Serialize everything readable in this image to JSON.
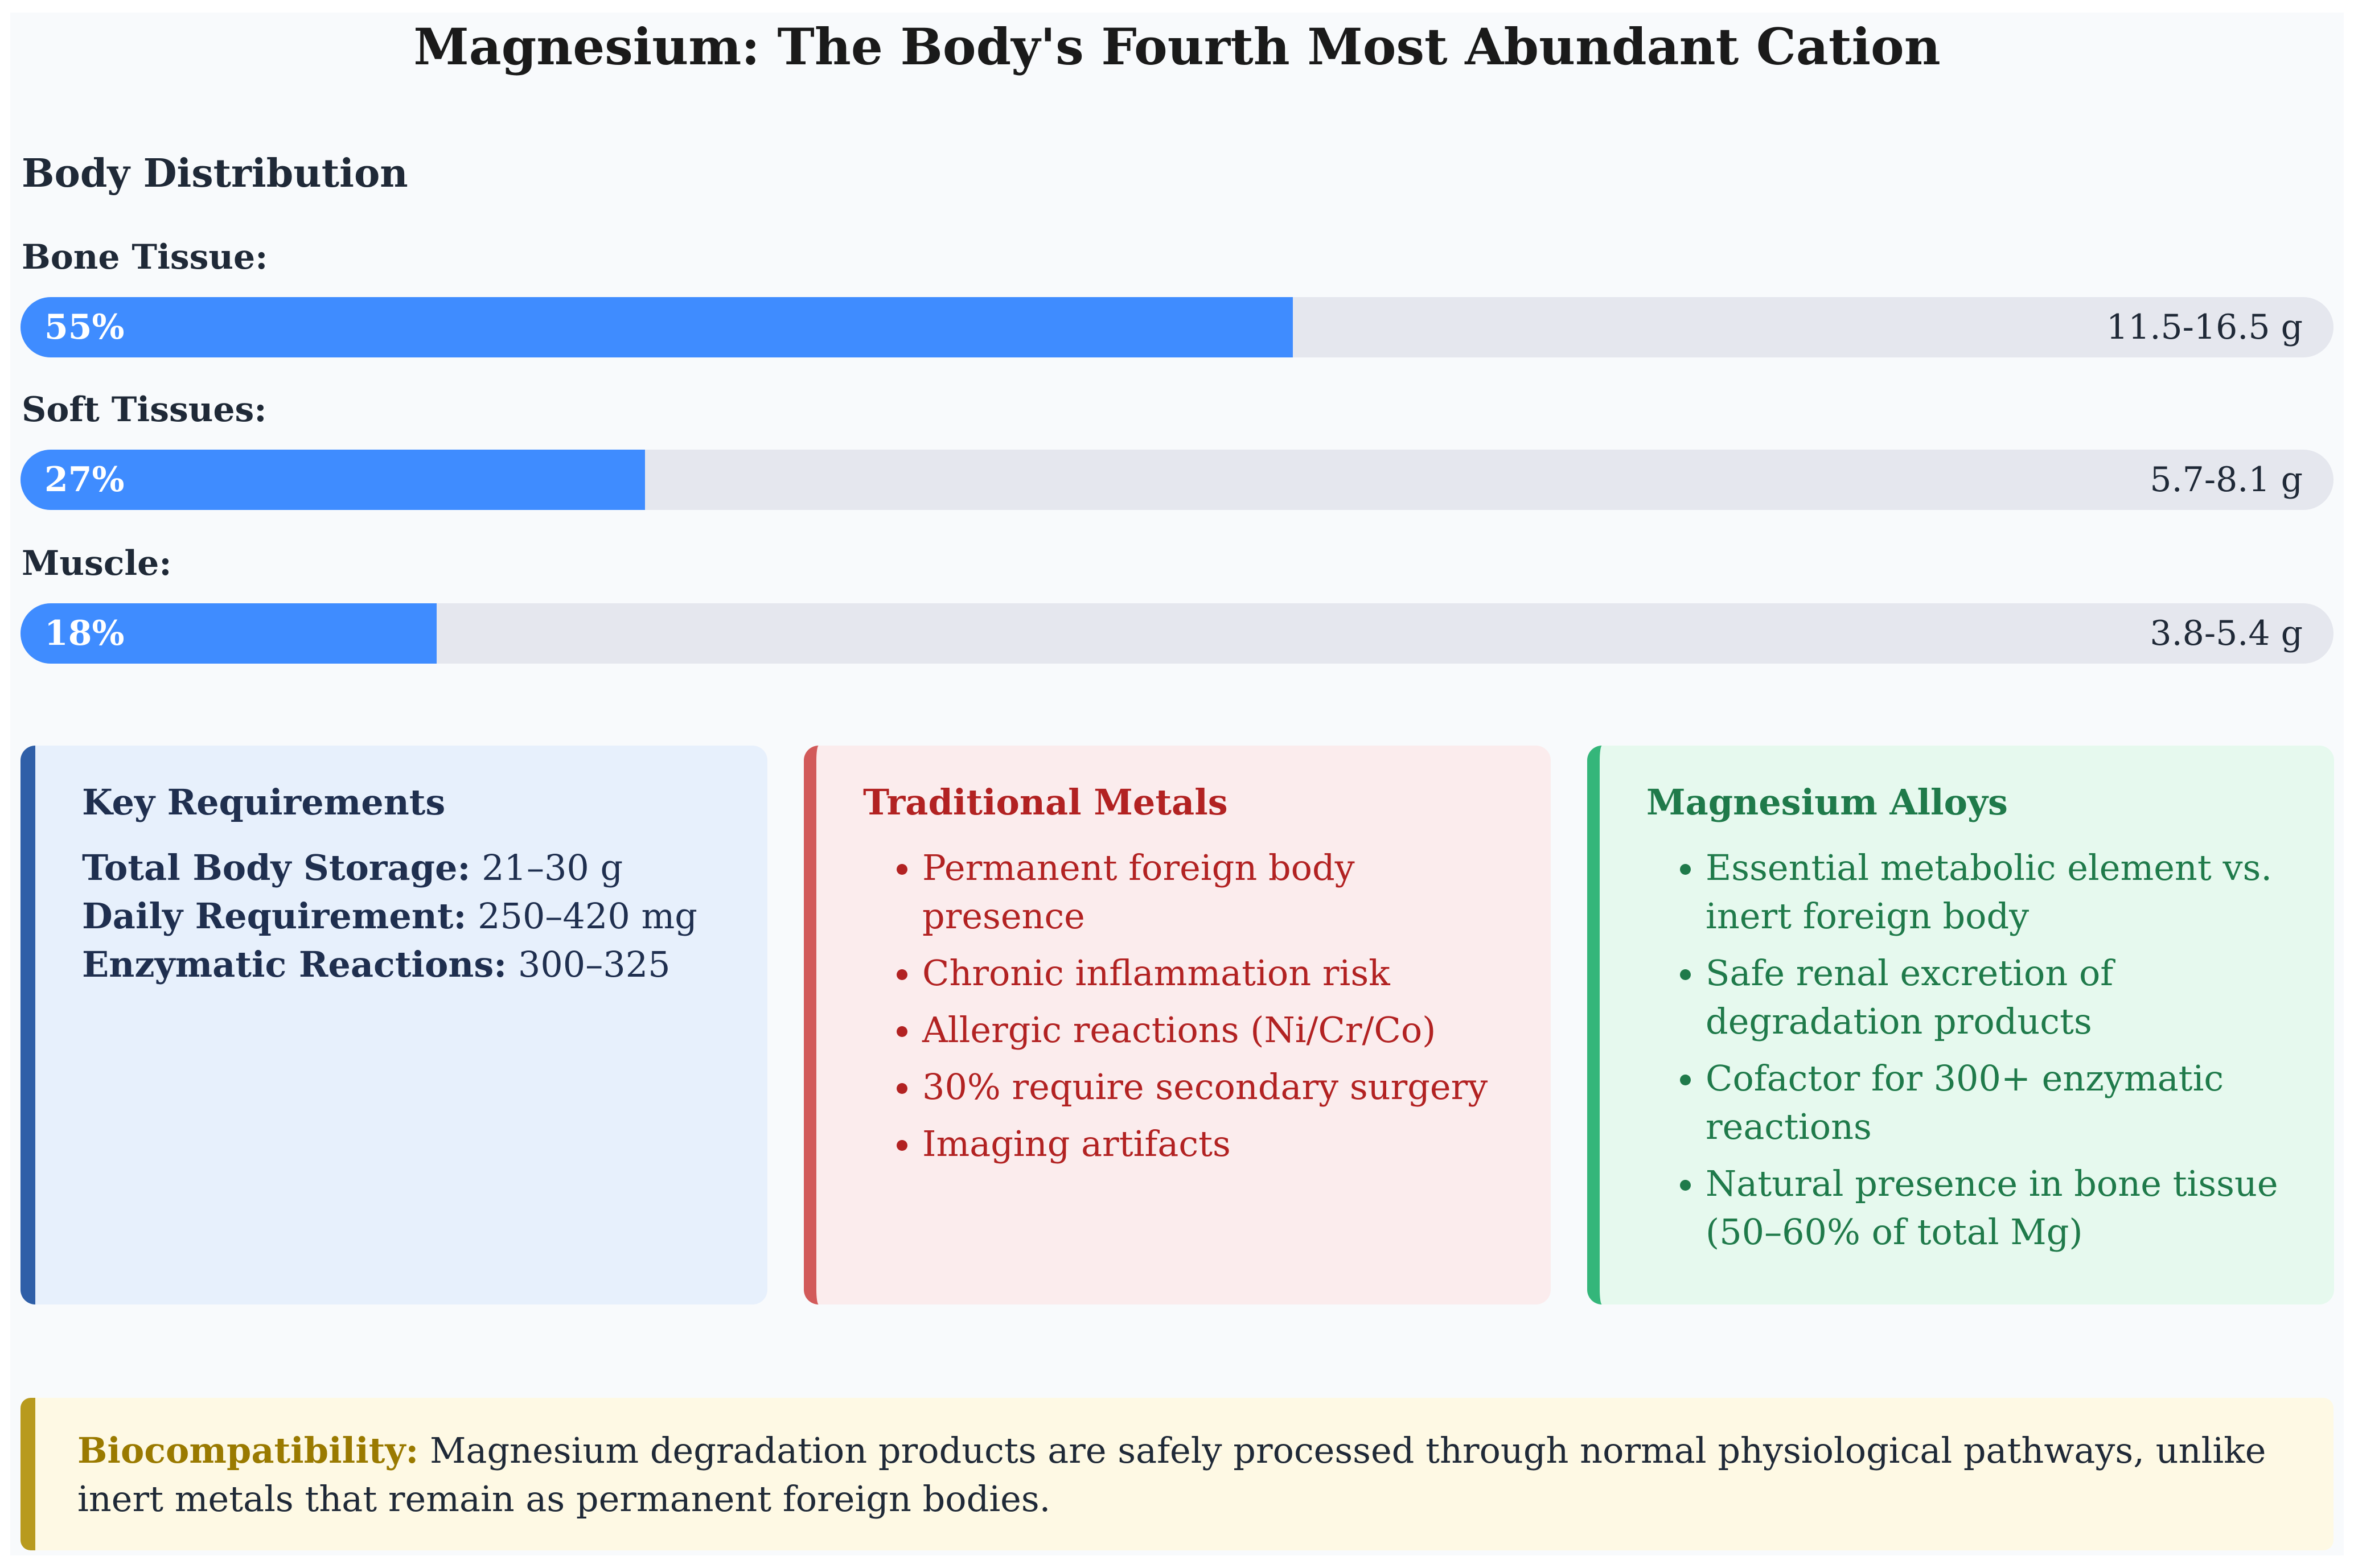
{
  "title": "Magnesium: The Body's Fourth Most Abundant Cation",
  "distribution": {
    "heading": "Body Distribution",
    "items": [
      {
        "label": "Bone Tissue:",
        "percent_label": "55%",
        "percent": 55,
        "amount": "11.5-16.5 g"
      },
      {
        "label": "Soft Tissues:",
        "percent_label": "27%",
        "percent": 27,
        "amount": "5.7-8.1 g"
      },
      {
        "label": "Muscle:",
        "percent_label": "18%",
        "percent": 18,
        "amount": "3.8-5.4 g"
      }
    ],
    "colors": {
      "fill": "#3f8cff",
      "track": "#e5e7ee"
    }
  },
  "cards": {
    "requirements": {
      "title": "Key Requirements",
      "items": [
        {
          "key": "Total Body Storage:",
          "value": "21–30 g"
        },
        {
          "key": "Daily Requirement:",
          "value": "250–420 mg"
        },
        {
          "key": "Enzymatic Reactions:",
          "value": "300–325"
        }
      ],
      "accent": "#2f5fa8"
    },
    "traditional": {
      "title": "Traditional Metals",
      "items": [
        "Permanent foreign body presence",
        "Chronic inflammation risk",
        "Allergic reactions (Ni/Cr/Co)",
        "30% require secondary surgery",
        "Imaging artifacts"
      ],
      "accent": "#d25a5a"
    },
    "alloys": {
      "title": "Magnesium Alloys",
      "items": [
        "Essential metabolic element vs. inert foreign body",
        "Safe renal excretion of degradation products",
        "Cofactor for 300+ enzymatic reactions",
        "Natural presence in bone tissue (50–60% of total Mg)"
      ],
      "accent": "#34b67a"
    }
  },
  "note": {
    "key": "Biocompatibility:",
    "text": " Magnesium degradation products are safely processed through normal physiological pathways, unlike inert metals that remain as permanent foreign bodies."
  }
}
